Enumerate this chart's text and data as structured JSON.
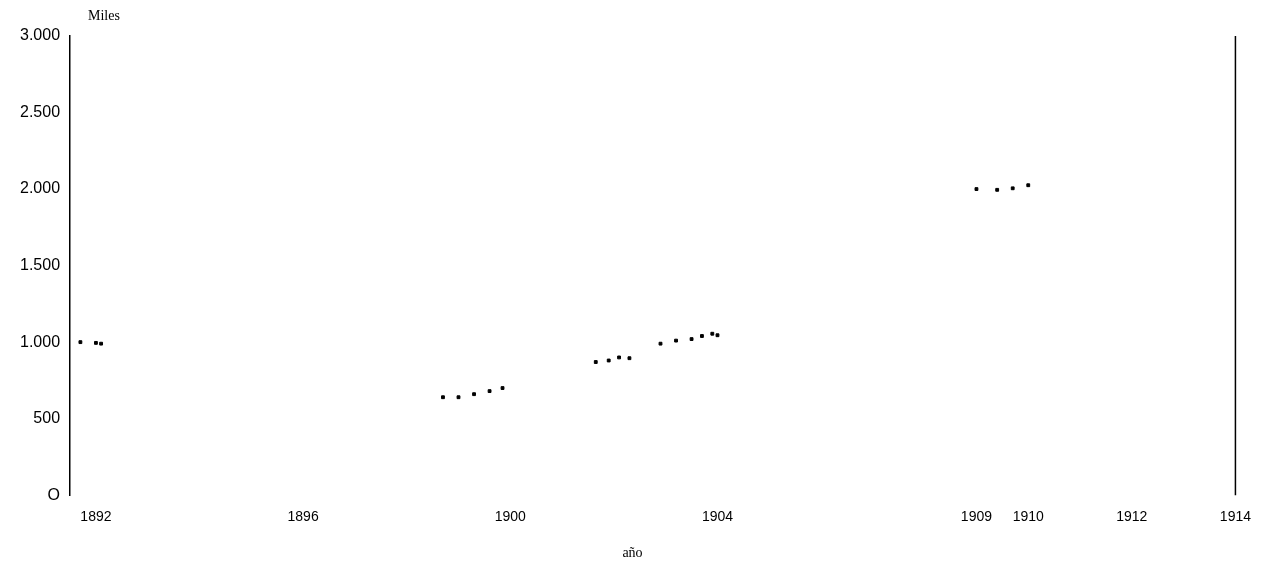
{
  "chart_data": {
    "type": "scatter",
    "ylabel": "Miles",
    "xlabel": "año",
    "x": [
      1891.7,
      1892.0,
      1892.1,
      1898.7,
      1899.0,
      1899.3,
      1899.6,
      1899.85,
      1901.65,
      1901.9,
      1902.1,
      1902.3,
      1902.9,
      1903.2,
      1903.5,
      1903.7,
      1903.9,
      1904.0,
      1909.0,
      1909.4,
      1909.7,
      1910.0
    ],
    "values": [
      1000,
      995,
      990,
      640,
      640,
      660,
      680,
      700,
      870,
      880,
      900,
      895,
      990,
      1010,
      1020,
      1040,
      1055,
      1045,
      2000,
      1995,
      2005,
      2025
    ],
    "color": "#000000",
    "marker": "square",
    "xlim": [
      1891.5,
      1914
    ],
    "xticks": [
      1892,
      1896,
      1900,
      1904,
      1909,
      1910,
      1912,
      1914
    ],
    "ylim": [
      0,
      3000
    ],
    "yticks": [
      {
        "value": 0,
        "label": "O"
      },
      500,
      {
        "value": 1000,
        "label": "1.000"
      },
      {
        "value": 1500,
        "label": "1.500"
      },
      {
        "value": 2000,
        "label": "2.000"
      },
      {
        "value": 2500,
        "label": "2.500"
      },
      {
        "value": 3000,
        "label": "3.000"
      }
    ],
    "grid": false,
    "legend": false
  }
}
